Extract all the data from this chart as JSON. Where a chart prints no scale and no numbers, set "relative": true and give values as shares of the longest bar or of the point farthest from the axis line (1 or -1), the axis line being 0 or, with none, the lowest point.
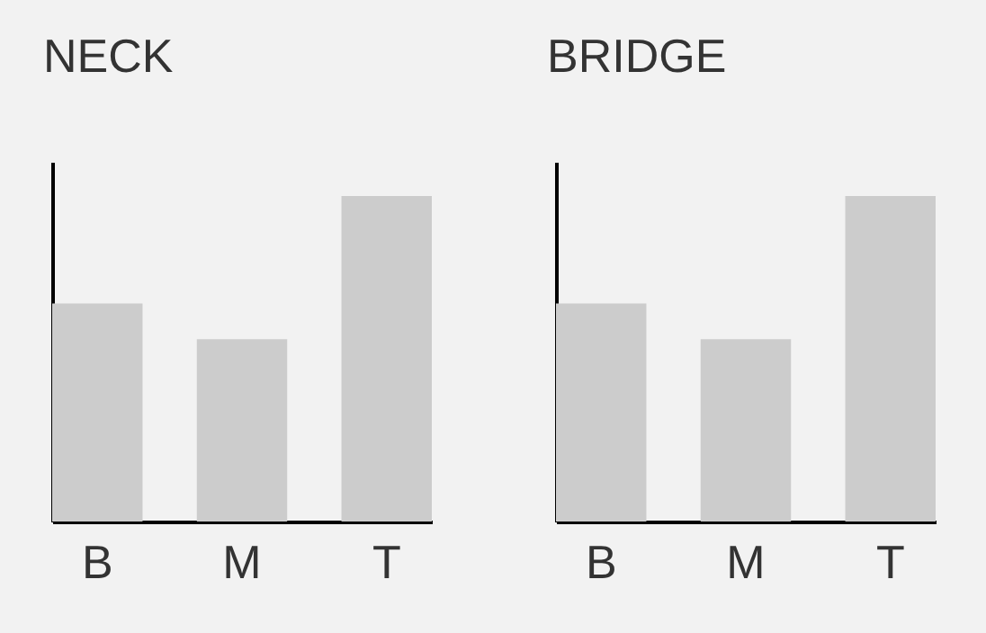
{
  "chart_data": [
    {
      "type": "bar",
      "title": "NECK",
      "categories": [
        "B",
        "M",
        "T"
      ],
      "values": [
        0.67,
        0.56,
        1
      ],
      "color": "#cccccc",
      "relative": true
    },
    {
      "type": "bar",
      "title": "BRIDGE",
      "categories": [
        "B",
        "M",
        "T"
      ],
      "values": [
        0.67,
        0.56,
        1
      ],
      "color": "#cccccc",
      "relative": true
    }
  ]
}
